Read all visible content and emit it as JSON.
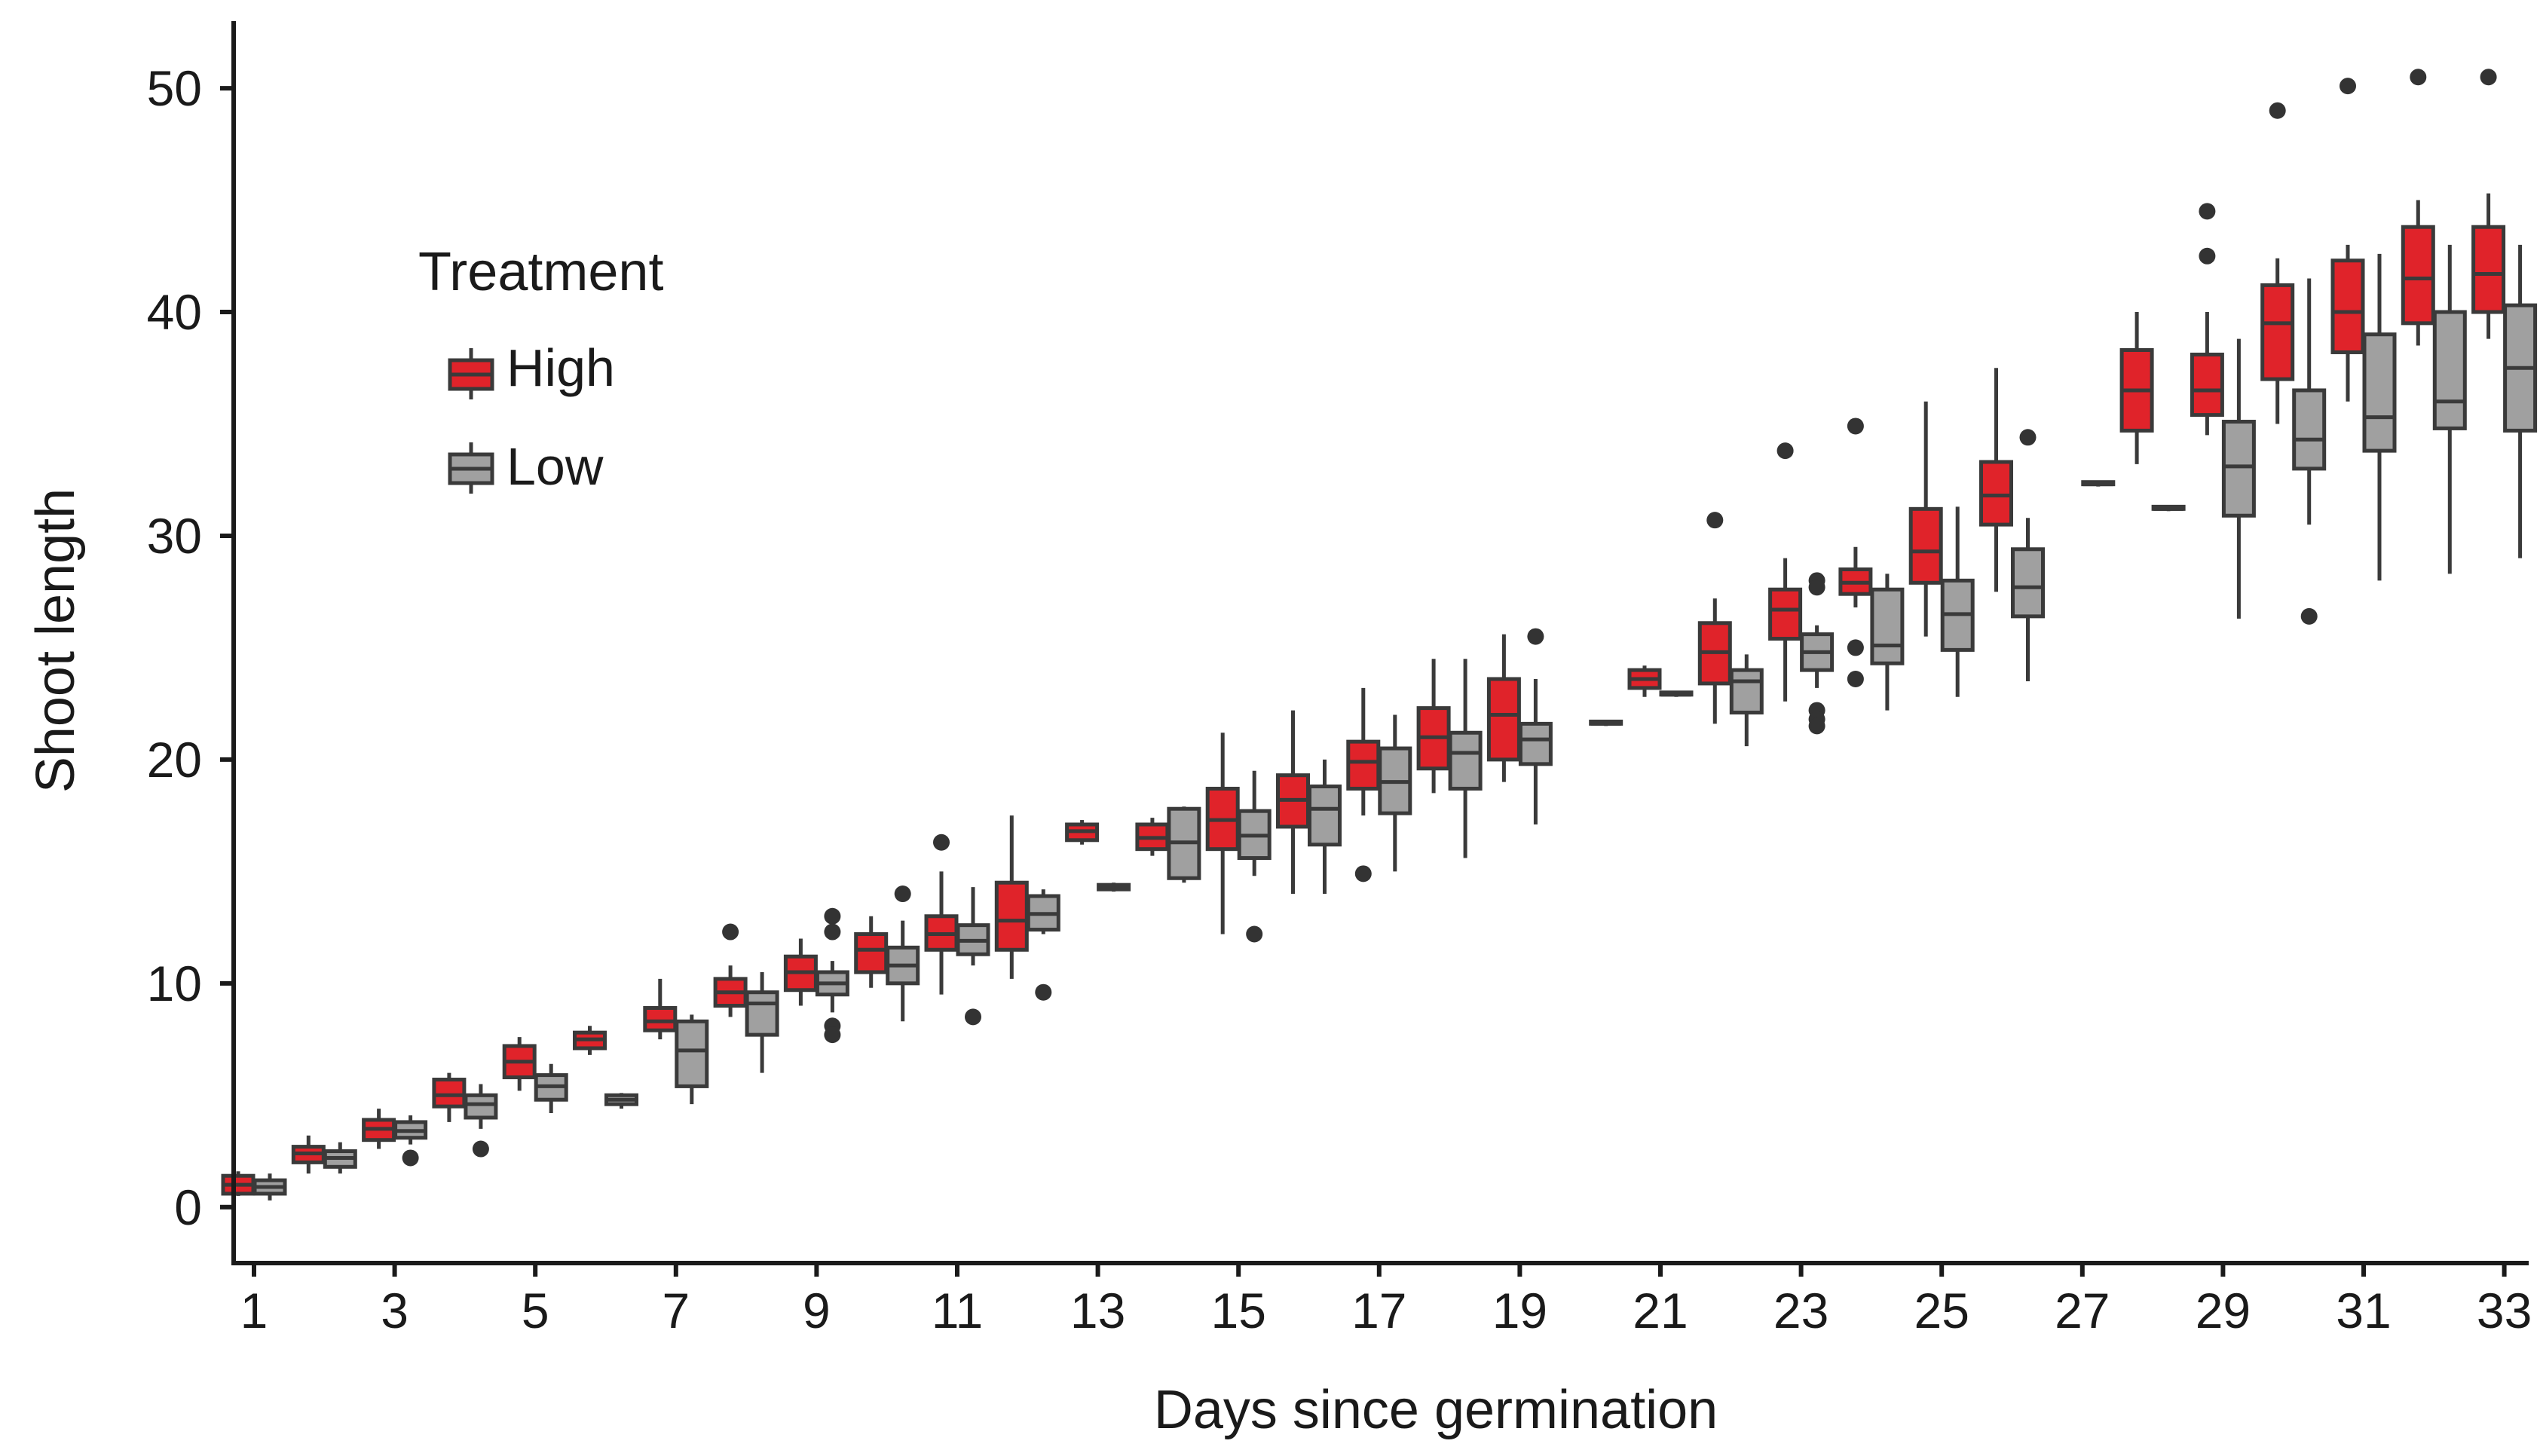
{
  "chart_data": {
    "type": "boxplot",
    "title": "",
    "xlabel": "Days since germination",
    "ylabel": "Shoot length",
    "xlim": [
      0.5,
      33.5
    ],
    "ylim": [
      -2.5,
      53
    ],
    "x_ticks": [
      1,
      3,
      5,
      7,
      9,
      11,
      13,
      15,
      17,
      19,
      21,
      23,
      25,
      27,
      29,
      31,
      33
    ],
    "y_ticks": [
      0,
      10,
      20,
      30,
      40,
      50
    ],
    "grid": false,
    "legend": {
      "title": "Treatment",
      "position": "upper-left",
      "entries": [
        {
          "name": "High",
          "color": "#e0232a"
        },
        {
          "name": "Low",
          "color": "#a0a0a0"
        }
      ]
    },
    "line_color": "#3a3a3a",
    "series": [
      {
        "name": "High",
        "color": "#e0232a",
        "boxes": [
          {
            "day": 1,
            "min": 0.5,
            "q1": 0.6,
            "median": 1.0,
            "q3": 1.4,
            "max": 1.6,
            "outliers": []
          },
          {
            "day": 2,
            "min": 1.5,
            "q1": 2.0,
            "median": 2.4,
            "q3": 2.7,
            "max": 3.2,
            "outliers": []
          },
          {
            "day": 3,
            "min": 2.6,
            "q1": 3.0,
            "median": 3.5,
            "q3": 3.9,
            "max": 4.4,
            "outliers": []
          },
          {
            "day": 4,
            "min": 3.8,
            "q1": 4.5,
            "median": 5.0,
            "q3": 5.7,
            "max": 6.0,
            "outliers": []
          },
          {
            "day": 5,
            "min": 5.2,
            "q1": 5.8,
            "median": 6.5,
            "q3": 7.2,
            "max": 7.6,
            "outliers": []
          },
          {
            "day": 6,
            "min": 6.8,
            "q1": 7.1,
            "median": 7.5,
            "q3": 7.8,
            "max": 8.1,
            "outliers": []
          },
          {
            "day": 7,
            "min": 7.5,
            "q1": 7.9,
            "median": 8.3,
            "q3": 8.9,
            "max": 10.2,
            "outliers": []
          },
          {
            "day": 8,
            "min": 8.5,
            "q1": 9.0,
            "median": 9.6,
            "q3": 10.2,
            "max": 10.8,
            "outliers": [
              12.3
            ]
          },
          {
            "day": 9,
            "min": 9.0,
            "q1": 9.7,
            "median": 10.5,
            "q3": 11.2,
            "max": 12.0,
            "outliers": []
          },
          {
            "day": 10,
            "min": 9.8,
            "q1": 10.5,
            "median": 11.5,
            "q3": 12.2,
            "max": 13.0,
            "outliers": []
          },
          {
            "day": 11,
            "min": 9.5,
            "q1": 11.5,
            "median": 12.2,
            "q3": 13.0,
            "max": 15.0,
            "outliers": [
              16.3
            ]
          },
          {
            "day": 12,
            "min": 10.2,
            "q1": 11.5,
            "median": 12.8,
            "q3": 14.5,
            "max": 17.5,
            "outliers": []
          },
          {
            "day": 13,
            "min": 16.2,
            "q1": 16.4,
            "median": 16.8,
            "q3": 17.1,
            "max": 17.3,
            "outliers": []
          },
          {
            "day": 14,
            "min": 15.7,
            "q1": 16.0,
            "median": 16.5,
            "q3": 17.1,
            "max": 17.4,
            "outliers": []
          },
          {
            "day": 15,
            "min": 12.2,
            "q1": 16.0,
            "median": 17.3,
            "q3": 18.7,
            "max": 21.2,
            "outliers": []
          },
          {
            "day": 16,
            "min": 14.0,
            "q1": 17.0,
            "median": 18.2,
            "q3": 19.3,
            "max": 22.2,
            "outliers": []
          },
          {
            "day": 17,
            "min": 17.5,
            "q1": 18.7,
            "median": 19.9,
            "q3": 20.8,
            "max": 23.2,
            "outliers": [
              14.9
            ]
          },
          {
            "day": 18,
            "min": 18.5,
            "q1": 19.6,
            "median": 21.0,
            "q3": 22.3,
            "max": 24.5,
            "outliers": []
          },
          {
            "day": 19,
            "min": 19.0,
            "q1": 20.0,
            "median": 22.0,
            "q3": 23.6,
            "max": 25.6,
            "outliers": []
          },
          {
            "day": 21,
            "min": 22.8,
            "q1": 23.2,
            "median": 23.6,
            "q3": 24.0,
            "max": 24.2,
            "outliers": []
          },
          {
            "day": 22,
            "min": 21.6,
            "q1": 23.4,
            "median": 24.8,
            "q3": 26.1,
            "max": 27.2,
            "outliers": [
              30.7
            ]
          },
          {
            "day": 23,
            "min": 22.6,
            "q1": 25.4,
            "median": 26.7,
            "q3": 27.6,
            "max": 29.0,
            "outliers": [
              33.8
            ]
          },
          {
            "day": 24,
            "min": 26.8,
            "q1": 27.4,
            "median": 27.9,
            "q3": 28.5,
            "max": 29.5,
            "outliers": [
              34.9,
              25.0,
              23.6
            ]
          },
          {
            "day": 25,
            "min": 25.5,
            "q1": 27.9,
            "median": 29.3,
            "q3": 31.2,
            "max": 36.0,
            "outliers": []
          },
          {
            "day": 26,
            "min": 27.5,
            "q1": 30.5,
            "median": 31.8,
            "q3": 33.3,
            "max": 37.5,
            "outliers": []
          },
          {
            "day": 28,
            "min": 33.2,
            "q1": 34.7,
            "median": 36.5,
            "q3": 38.3,
            "max": 40.0,
            "outliers": []
          },
          {
            "day": 29,
            "min": 34.5,
            "q1": 35.4,
            "median": 36.5,
            "q3": 38.1,
            "max": 40.0,
            "outliers": [
              44.5,
              42.5
            ]
          },
          {
            "day": 30,
            "min": 35.0,
            "q1": 37.0,
            "median": 39.5,
            "q3": 41.2,
            "max": 42.4,
            "outliers": [
              49.0
            ]
          },
          {
            "day": 31,
            "min": 36.0,
            "q1": 38.2,
            "median": 40.0,
            "q3": 42.3,
            "max": 43.0,
            "outliers": [
              50.1
            ]
          },
          {
            "day": 32,
            "min": 38.5,
            "q1": 39.5,
            "median": 41.5,
            "q3": 43.8,
            "max": 45.0,
            "outliers": [
              50.5
            ]
          },
          {
            "day": 33,
            "min": 38.8,
            "q1": 40.0,
            "median": 41.7,
            "q3": 43.8,
            "max": 45.3,
            "outliers": [
              50.5
            ]
          }
        ]
      },
      {
        "name": "Low",
        "color": "#a0a0a0",
        "boxes": [
          {
            "day": 1,
            "min": 0.3,
            "q1": 0.6,
            "median": 0.9,
            "q3": 1.2,
            "max": 1.5,
            "outliers": []
          },
          {
            "day": 2,
            "min": 1.5,
            "q1": 1.8,
            "median": 2.2,
            "q3": 2.5,
            "max": 2.9,
            "outliers": []
          },
          {
            "day": 3,
            "min": 2.8,
            "q1": 3.1,
            "median": 3.4,
            "q3": 3.8,
            "max": 4.1,
            "outliers": [
              2.2
            ]
          },
          {
            "day": 4,
            "min": 3.5,
            "q1": 4.0,
            "median": 4.6,
            "q3": 5.0,
            "max": 5.5,
            "outliers": [
              2.6
            ]
          },
          {
            "day": 5,
            "min": 4.2,
            "q1": 4.8,
            "median": 5.4,
            "q3": 5.9,
            "max": 6.4,
            "outliers": []
          },
          {
            "day": 6,
            "min": 4.4,
            "q1": 4.6,
            "median": 4.8,
            "q3": 5.0,
            "max": 5.1,
            "outliers": []
          },
          {
            "day": 7,
            "min": 4.6,
            "q1": 5.4,
            "median": 7.0,
            "q3": 8.3,
            "max": 8.6,
            "outliers": []
          },
          {
            "day": 8,
            "min": 6.0,
            "q1": 7.7,
            "median": 9.1,
            "q3": 9.6,
            "max": 10.5,
            "outliers": []
          },
          {
            "day": 9,
            "min": 8.7,
            "q1": 9.5,
            "median": 10.0,
            "q3": 10.5,
            "max": 11.0,
            "outliers": [
              13.0,
              12.3,
              8.1,
              7.7
            ]
          },
          {
            "day": 10,
            "min": 8.3,
            "q1": 10.0,
            "median": 10.8,
            "q3": 11.6,
            "max": 12.8,
            "outliers": [
              14.0
            ]
          },
          {
            "day": 11,
            "min": 10.8,
            "q1": 11.3,
            "median": 11.9,
            "q3": 12.6,
            "max": 14.3,
            "outliers": [
              8.5
            ]
          },
          {
            "day": 12,
            "min": 12.2,
            "q1": 12.4,
            "median": 13.1,
            "q3": 13.9,
            "max": 14.2,
            "outliers": [
              9.6
            ]
          },
          {
            "day": 13,
            "min": 14.1,
            "q1": 14.2,
            "median": 14.3,
            "q3": 14.4,
            "max": 14.5,
            "outliers": []
          },
          {
            "day": 14,
            "min": 14.5,
            "q1": 14.7,
            "median": 16.3,
            "q3": 17.8,
            "max": 17.9,
            "outliers": []
          },
          {
            "day": 15,
            "min": 14.8,
            "q1": 15.6,
            "median": 16.6,
            "q3": 17.7,
            "max": 19.5,
            "outliers": [
              12.2
            ]
          },
          {
            "day": 16,
            "min": 14.0,
            "q1": 16.2,
            "median": 17.8,
            "q3": 18.8,
            "max": 20.0,
            "outliers": []
          },
          {
            "day": 17,
            "min": 15.0,
            "q1": 17.6,
            "median": 19.0,
            "q3": 20.5,
            "max": 22.0,
            "outliers": []
          },
          {
            "day": 18,
            "min": 15.6,
            "q1": 18.7,
            "median": 20.3,
            "q3": 21.2,
            "max": 24.5,
            "outliers": []
          },
          {
            "day": 19,
            "min": 17.1,
            "q1": 19.8,
            "median": 20.9,
            "q3": 21.6,
            "max": 23.6,
            "outliers": [
              25.5
            ]
          },
          {
            "day": 20,
            "min": 21.5,
            "q1": 21.6,
            "median": 21.6,
            "q3": 21.7,
            "max": 21.7,
            "outliers": []
          },
          {
            "day": 21,
            "min": 22.8,
            "q1": 22.9,
            "median": 22.9,
            "q3": 23.0,
            "max": 23.0,
            "outliers": []
          },
          {
            "day": 22,
            "min": 20.6,
            "q1": 22.1,
            "median": 23.5,
            "q3": 24.0,
            "max": 24.7,
            "outliers": []
          },
          {
            "day": 23,
            "min": 23.2,
            "q1": 24.0,
            "median": 24.8,
            "q3": 25.6,
            "max": 26.0,
            "outliers": [
              28.0,
              27.7,
              22.2,
              21.8,
              21.5
            ]
          },
          {
            "day": 24,
            "min": 22.2,
            "q1": 24.3,
            "median": 25.1,
            "q3": 27.6,
            "max": 28.3,
            "outliers": []
          },
          {
            "day": 25,
            "min": 22.8,
            "q1": 24.9,
            "median": 26.5,
            "q3": 28.0,
            "max": 31.3,
            "outliers": []
          },
          {
            "day": 26,
            "min": 23.5,
            "q1": 26.4,
            "median": 27.7,
            "q3": 29.4,
            "max": 30.8,
            "outliers": [
              34.4
            ]
          },
          {
            "day": 27,
            "min": 32.2,
            "q1": 32.3,
            "median": 32.3,
            "q3": 32.4,
            "max": 32.4,
            "outliers": []
          },
          {
            "day": 28,
            "min": 31.1,
            "q1": 31.2,
            "median": 31.2,
            "q3": 31.3,
            "max": 31.3,
            "outliers": []
          },
          {
            "day": 29,
            "min": 26.3,
            "q1": 30.9,
            "median": 33.1,
            "q3": 35.1,
            "max": 38.8,
            "outliers": []
          },
          {
            "day": 30,
            "min": 30.5,
            "q1": 33.0,
            "median": 34.3,
            "q3": 36.5,
            "max": 41.5,
            "outliers": [
              26.4
            ]
          },
          {
            "day": 31,
            "min": 28.0,
            "q1": 33.8,
            "median": 35.3,
            "q3": 39.0,
            "max": 42.6,
            "outliers": []
          },
          {
            "day": 32,
            "min": 28.3,
            "q1": 34.8,
            "median": 36.0,
            "q3": 40.0,
            "max": 43.0,
            "outliers": []
          },
          {
            "day": 33,
            "min": 29.0,
            "q1": 34.7,
            "median": 37.5,
            "q3": 40.3,
            "max": 43.0,
            "outliers": []
          }
        ]
      }
    ]
  }
}
